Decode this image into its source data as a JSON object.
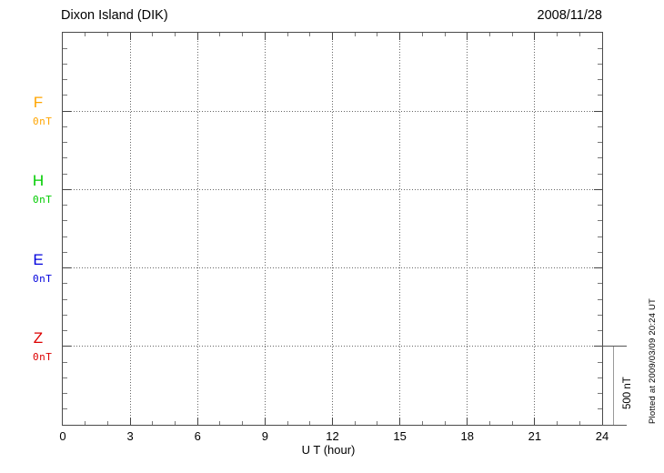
{
  "header": {
    "title": "Dixon Island (DIK)",
    "date": "2008/11/28"
  },
  "chart_data": {
    "type": "line",
    "title": "Dixon Island (DIK)",
    "date": "2008/11/28",
    "xlabel": "U T (hour)",
    "xlim": [
      0,
      24
    ],
    "x_tick_labels": [
      "0",
      "3",
      "6",
      "9",
      "12",
      "15",
      "18",
      "21",
      "24"
    ],
    "x_minor_step_hours": 1,
    "y_minor_tick_nT": 100,
    "channel_spacing_nT": 500,
    "grid": true,
    "series": [
      {
        "name": "F",
        "color": "#FFA500",
        "baseline_nT": 0,
        "baseline_label": "0nT",
        "values": []
      },
      {
        "name": "H",
        "color": "#00CC00",
        "baseline_nT": 0,
        "baseline_label": "0nT",
        "values": []
      },
      {
        "name": "E",
        "color": "#0000DD",
        "baseline_nT": 0,
        "baseline_label": "0nT",
        "values": []
      },
      {
        "name": "Z",
        "color": "#DD0000",
        "baseline_nT": 0,
        "baseline_label": "0nT",
        "values": []
      }
    ],
    "scale_bar": {
      "label": "500 nT",
      "value_nT": 500
    },
    "plotted_at": "Plotted at 2009/03/09 20:24 UT",
    "note": "Empty magnetogram: only dotted 0 nT baselines and grid are drawn, no data traces"
  }
}
